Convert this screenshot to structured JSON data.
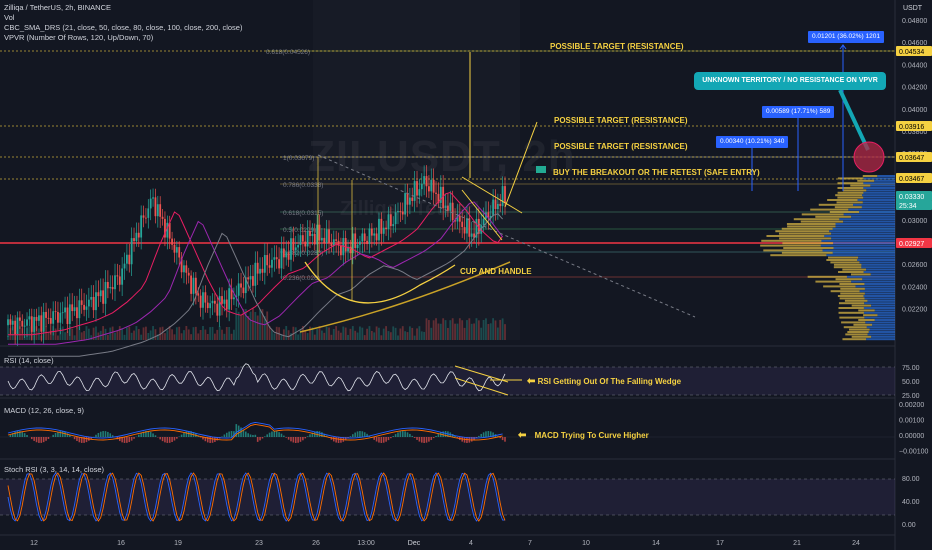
{
  "header": {
    "title": "Zilliqa / TetherUS, 2h, BINANCE",
    "vol": "Vol",
    "sma": "CBC_SMA_DRS (21, close, 50, close, 80, close, 100, close, 200, close)",
    "vpvr": "VPVR (Number Of Rows, 120, Up/Down, 70)"
  },
  "watermark": {
    "symbol": "ZILUSDT, 2h",
    "name": "Zilliqa / TetherUS"
  },
  "price_axis": {
    "currency": "USDT",
    "ticks": [
      "0.04800",
      "0.04600",
      "0.04400",
      "0.04200",
      "0.04000",
      "0.03800",
      "0.03600",
      "0.03400",
      "0.03200",
      "0.03000",
      "0.02800",
      "0.02600",
      "0.02400",
      "0.02200"
    ],
    "levels": [
      {
        "value": "0.04534",
        "color": "#f5d142",
        "text": "#000000"
      },
      {
        "value": "0.03916",
        "color": "#f5d142",
        "text": "#000000"
      },
      {
        "value": "0.03647",
        "color": "#f5d142",
        "text": "#000000"
      },
      {
        "value": "0.03467",
        "color": "#f5d142",
        "text": "#000000"
      },
      {
        "value": "0.03330",
        "color": "#26a69a",
        "text": "#ffffff"
      },
      {
        "value": "25:34",
        "color": "#26a69a",
        "text": "#ffffff"
      },
      {
        "value": "0.02927",
        "color": "#f23645",
        "text": "#ffffff"
      }
    ]
  },
  "fib": [
    {
      "label": "0.618(0.04526)"
    },
    {
      "label": "1(0.03679)"
    },
    {
      "label": "0.786(0.0338)"
    },
    {
      "label": "0.618(0.0315)"
    },
    {
      "label": "0.5(0.0299)"
    },
    {
      "label": "0.382(0.0283)"
    },
    {
      "label": "0.236(0.026)"
    }
  ],
  "annotations": {
    "target1": "POSSIBLE TARGET (RESISTANCE)",
    "target2": "POSSIBLE TARGET (RESISTANCE)",
    "target3": "POSSIBLE TARGET (RESISTANCE)",
    "buy": "BUY THE BREAKOUT OR THE RETEST (SAFE ENTRY)",
    "cup": "CUP AND HANDLE",
    "callout": "UNKNOWN TERRITORY / NO RESISTANCE ON VPVR",
    "rsi_note": "RSI Getting Out Of The Falling Wedge",
    "macd_note": "MACD Trying To Curve Higher"
  },
  "measures": {
    "m1": "0.01201 (36.02%) 1201",
    "m2": "0.00589 (17.71%) 589",
    "m3": "0.00340 (10.21%) 340"
  },
  "panes": {
    "rsi": {
      "label": "RSI (14, close)",
      "ticks": [
        "75.00",
        "50.00",
        "25.00"
      ]
    },
    "macd": {
      "label": "MACD (12, 26, close, 9)",
      "ticks": [
        "0.00200",
        "0.00100",
        "0.00000",
        "−0.00100"
      ]
    },
    "stoch": {
      "label": "Stoch RSI (3, 3, 14, 14, close)",
      "ticks": [
        "80.00",
        "40.00",
        "0.00"
      ]
    }
  },
  "time_axis": [
    "12",
    "16",
    "19",
    "23",
    "26",
    "13:00",
    "Dec",
    "4",
    "7",
    "10",
    "14",
    "17",
    "21",
    "24"
  ],
  "colors": {
    "bg": "#131722",
    "up": "#26a69a",
    "down": "#ef5350",
    "yellow": "#f5d142",
    "blue": "#2962ff",
    "red_line": "#f23645"
  },
  "chart_data": {
    "type": "candlestick",
    "symbol": "ZILUSDT",
    "interval": "2h",
    "ylim": [
      0.021,
      0.049
    ],
    "close_approx": [
      0.0224,
      0.0226,
      0.0228,
      0.0232,
      0.0236,
      0.0242,
      0.0252,
      0.0265,
      0.03,
      0.033,
      0.03,
      0.027,
      0.0245,
      0.024,
      0.0248,
      0.0262,
      0.0275,
      0.028,
      0.0292,
      0.03,
      0.0296,
      0.0288,
      0.0295,
      0.0302,
      0.0312,
      0.033,
      0.0345,
      0.033,
      0.0312,
      0.03,
      0.0318,
      0.0333
    ],
    "current_price": 0.0333,
    "support_line": 0.02927
  }
}
